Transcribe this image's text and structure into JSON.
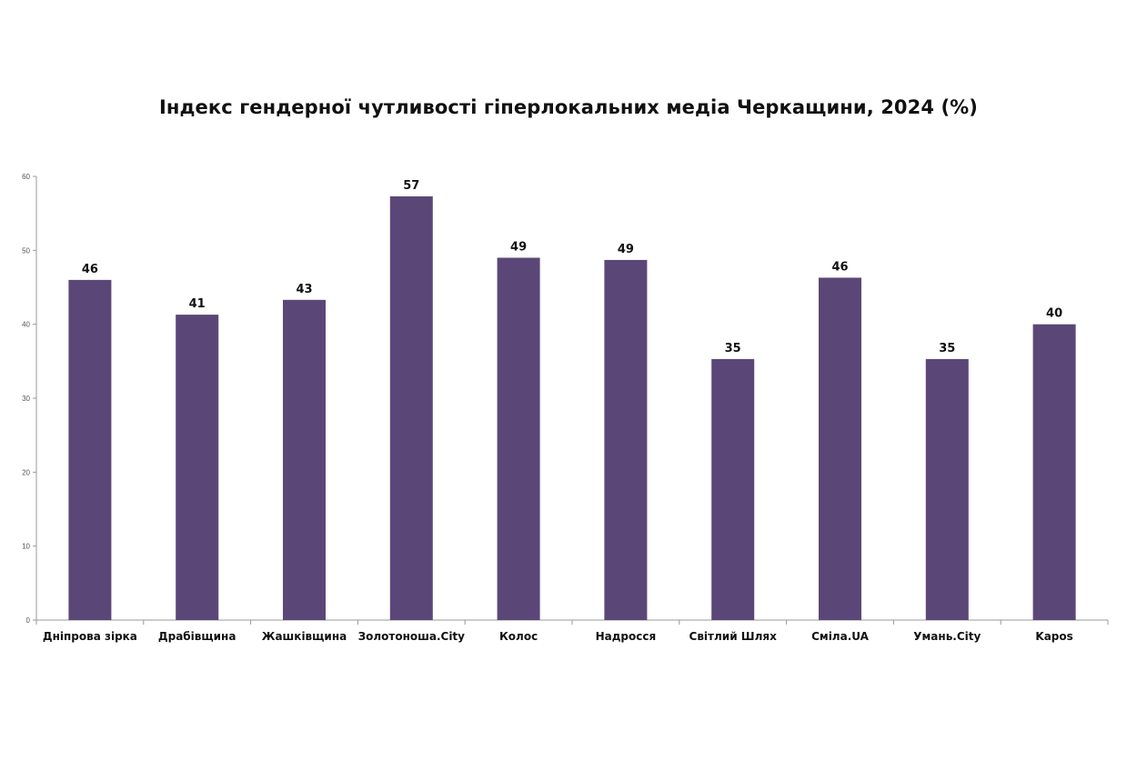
{
  "chart_data": {
    "type": "bar",
    "title": "Індекс гендерної чутливості гіперлокальних медіа Черкащини, 2024 (%)",
    "xlabel": "",
    "ylabel": "",
    "categories": [
      "Дніпрова зірка",
      "Драбівщина",
      "Жашківщина",
      "Золотоноша.City",
      "Колос",
      "Надросся",
      "Світлий Шлях",
      "Сміла.UA",
      "Умань.City",
      "Kapos"
    ],
    "values": [
      46,
      41.3,
      43.3,
      57.3,
      49,
      48.7,
      35.3,
      46.3,
      35.3,
      40
    ],
    "data_labels": [
      "46",
      "41",
      "43",
      "57",
      "49",
      "49",
      "35",
      "46",
      "35",
      "40"
    ],
    "ylim": [
      0,
      60
    ],
    "yticks": [
      0,
      10,
      20,
      30,
      40,
      50,
      60
    ],
    "grid": false,
    "legend": "none",
    "bar_color": "#5b4777"
  }
}
